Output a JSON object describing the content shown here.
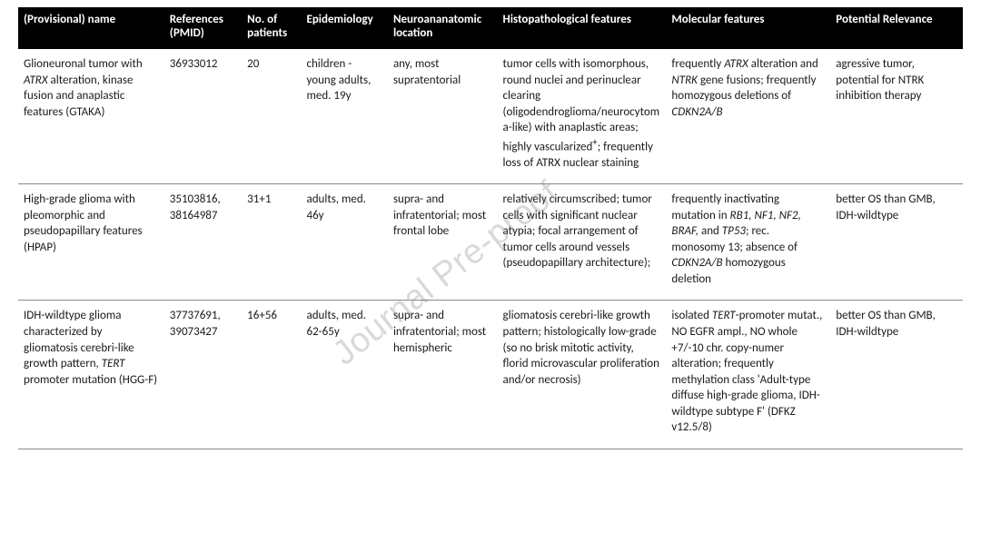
{
  "watermark": "Journal Pre-proof",
  "table": {
    "columns": [
      {
        "key": "name",
        "label": "(Provisional) name",
        "class": "col-name"
      },
      {
        "key": "ref",
        "label": "References (PMID)",
        "class": "col-ref"
      },
      {
        "key": "npat",
        "label": "No. of patients",
        "class": "col-npat"
      },
      {
        "key": "epi",
        "label": "Epidemiology",
        "class": "col-epi"
      },
      {
        "key": "loc",
        "label": "Neuroananatomic location",
        "class": "col-loc"
      },
      {
        "key": "histo",
        "label": "Histopathological features",
        "class": "col-histo"
      },
      {
        "key": "mol",
        "label": "Molecular features",
        "class": "col-mol"
      },
      {
        "key": "rel",
        "label": "Potential Relevance",
        "class": "col-rel"
      }
    ],
    "rows": [
      {
        "name": "Glioneuronal tumor with <i>ATRX</i> alteration, kinase fusion and anaplastic features (GTAKA)",
        "ref": "36933012",
        "npat": "20",
        "epi": "children - young adults, med. 19y",
        "loc": "any, most supratentorial",
        "histo": "tumor cells with isomorphous, round nuclei and perinuclear clearing (oligodendroglioma/neurocytoma-like) with anaplastic areas; highly vascularized<sup>+</sup>; frequently loss of ATRX nuclear staining",
        "mol": "frequently <i>ATRX</i> alteration and <i>NTRK</i> gene fusions; frequently homozygous deletions of <i>CDKN2A/B</i>",
        "rel": "agressive tumor, potential for NTRK inhibition therapy"
      },
      {
        "name": "High-grade glioma with pleomorphic and pseudopapillary features (HPAP)",
        "ref": "35103816, 38164987",
        "npat": "31+1",
        "epi": "adults, med. 46y",
        "loc": "supra- and infratentorial; most frontal lobe",
        "histo": "relatively circumscribed; tumor cells with significant nuclear atypia; focal arrangement of tumor cells around vessels (pseudopapillary architecture);",
        "mol": "frequently inactivating mutation in <i>RB1, NF1, NF2, BRAF,</i> and <i>TP53</i>; rec. monosomy 13; absence of <i>CDKN2A/B</i> homozygous deletion",
        "rel": "better OS than GMB, IDH-wildtype"
      },
      {
        "name": "IDH-wildtype glioma characterized by gliomatosis cerebri-like growth pattern, <i>TERT</i> promoter mutation (HGG-F)",
        "ref": "37737691, 39073427",
        "npat": "16+56",
        "epi": "adults, med. 62-65y",
        "loc": "supra- and infratentorial; most hemispheric",
        "histo": "gliomatosis cerebri-like growth pattern; histologically low-grade (so no brisk mitotic activity, florid microvascular proliferation and/or necrosis)",
        "mol": "isolated <i>TERT</i>-promoter mutat., NO EGFR ampl., NO whole +7/-10 chr. copy-numer alteration; frequently methylation class 'Adult-type diffuse high-grade glioma, IDH-wildtype subtype F' (DFKZ v12.5/8)",
        "rel": "better OS than GMB, IDH-wildtype"
      }
    ]
  }
}
